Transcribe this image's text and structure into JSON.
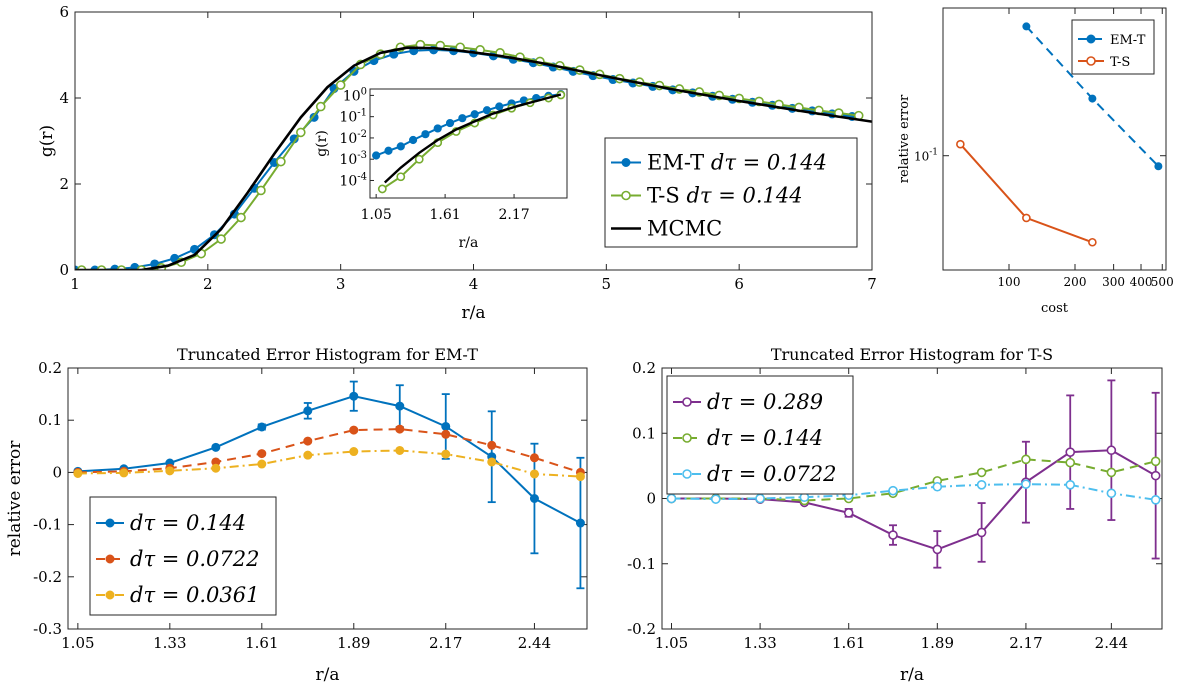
{
  "colors": {
    "blue": "#0072BD",
    "orange": "#D95319",
    "yellow": "#EDB120",
    "purple": "#7E2F8E",
    "green": "#77AC30",
    "cyan": "#4DBEEE",
    "black": "#000000"
  },
  "chart_data": [
    {
      "id": "gr",
      "type": "line",
      "title": "",
      "xlabel": "r/a",
      "ylabel": "g(r)",
      "xlim": [
        1,
        7
      ],
      "ylim": [
        0,
        6
      ],
      "xticks": [
        1,
        2,
        3,
        4,
        5,
        6,
        7
      ],
      "yticks": [
        0,
        2,
        4,
        6
      ],
      "legend_position": "lower-right",
      "series": [
        {
          "name": "EM-T dτ = 0.144",
          "legend_label": {
            "text": "EM-T ",
            "math": "dτ = 0.144"
          },
          "color": "blue",
          "marker": "filled-circle",
          "x": [
            1.0,
            1.15,
            1.3,
            1.45,
            1.6,
            1.75,
            1.9,
            2.05,
            2.2,
            2.35,
            2.5,
            2.65,
            2.8,
            2.95,
            3.1,
            3.25,
            3.4,
            3.55,
            3.7,
            3.85,
            4.0,
            4.15,
            4.3,
            4.45,
            4.6,
            4.75,
            4.9,
            5.05,
            5.2,
            5.35,
            5.5,
            5.65,
            5.8,
            5.95,
            6.1,
            6.25,
            6.4,
            6.55,
            6.7,
            6.85
          ],
          "y": [
            0.0,
            0.0,
            0.02,
            0.06,
            0.14,
            0.27,
            0.48,
            0.82,
            1.3,
            1.9,
            2.5,
            3.05,
            3.55,
            4.22,
            4.62,
            4.87,
            5.02,
            5.1,
            5.12,
            5.1,
            5.05,
            4.98,
            4.9,
            4.82,
            4.72,
            4.62,
            4.52,
            4.43,
            4.35,
            4.27,
            4.19,
            4.12,
            4.04,
            3.97,
            3.9,
            3.83,
            3.76,
            3.7,
            3.63,
            3.57
          ]
        },
        {
          "name": "T-S dτ = 0.144",
          "legend_label": {
            "text": "T-S ",
            "math": "dτ = 0.144"
          },
          "color": "green",
          "marker": "open-circle",
          "x": [
            1.05,
            1.2,
            1.35,
            1.5,
            1.65,
            1.8,
            1.95,
            2.1,
            2.25,
            2.4,
            2.55,
            2.7,
            2.85,
            3.0,
            3.15,
            3.3,
            3.45,
            3.6,
            3.75,
            3.9,
            4.05,
            4.2,
            4.35,
            4.5,
            4.65,
            4.8,
            4.95,
            5.1,
            5.25,
            5.4,
            5.55,
            5.7,
            5.85,
            6.0,
            6.15,
            6.3,
            6.45,
            6.6,
            6.75,
            6.9
          ],
          "y": [
            0.0,
            0.0,
            0.0,
            0.0,
            0.05,
            0.18,
            0.38,
            0.72,
            1.22,
            1.85,
            2.52,
            3.2,
            3.8,
            4.3,
            4.78,
            5.02,
            5.18,
            5.24,
            5.22,
            5.18,
            5.12,
            5.05,
            4.95,
            4.85,
            4.75,
            4.65,
            4.55,
            4.45,
            4.37,
            4.29,
            4.21,
            4.14,
            4.06,
            3.99,
            3.92,
            3.85,
            3.78,
            3.71,
            3.65,
            3.59
          ]
        },
        {
          "name": "MCMC",
          "legend_label": {
            "text": "MCMC",
            "math": ""
          },
          "color": "black",
          "marker": "none",
          "x": [
            1.0,
            1.5,
            1.7,
            1.9,
            2.1,
            2.3,
            2.5,
            2.7,
            2.9,
            3.1,
            3.3,
            3.5,
            3.7,
            3.9,
            4.2,
            4.5,
            5.0,
            5.5,
            6.0,
            6.5,
            7.0
          ],
          "y": [
            0.0,
            0.0,
            0.1,
            0.35,
            0.95,
            1.8,
            2.7,
            3.55,
            4.25,
            4.75,
            5.05,
            5.17,
            5.16,
            5.1,
            4.98,
            4.82,
            4.5,
            4.2,
            3.93,
            3.68,
            3.45
          ]
        }
      ],
      "inset": {
        "type": "line",
        "xlabel": "r/a",
        "ylabel": "g(r)",
        "yscale": "log",
        "xlim": [
          1.0,
          2.6
        ],
        "ylim": [
          1.5e-05,
          2
        ],
        "xticks": [
          1.05,
          1.61,
          2.17
        ],
        "xtick_labels": [
          "1.05",
          "1.61",
          "2.17"
        ],
        "yticks": [
          0.0001,
          0.001,
          0.01,
          0.1,
          1
        ],
        "ytick_labels": [
          {
            "base": "10",
            "exp": "-4"
          },
          {
            "base": "10",
            "exp": "-3"
          },
          {
            "base": "10",
            "exp": "-2"
          },
          {
            "base": "10",
            "exp": "-1"
          },
          {
            "base": "10",
            "exp": "0"
          }
        ],
        "series": [
          {
            "color": "blue",
            "marker": "filled-circle",
            "x": [
              1.05,
              1.15,
              1.25,
              1.35,
              1.45,
              1.55,
              1.65,
              1.75,
              1.85,
              1.95,
              2.05,
              2.15,
              2.25,
              2.35,
              2.45,
              2.55
            ],
            "y": [
              0.0015,
              0.0025,
              0.004,
              0.008,
              0.015,
              0.028,
              0.05,
              0.085,
              0.13,
              0.2,
              0.3,
              0.42,
              0.58,
              0.75,
              0.95,
              1.15
            ]
          },
          {
            "color": "green",
            "marker": "open-circle",
            "x": [
              1.1,
              1.25,
              1.4,
              1.55,
              1.7,
              1.85,
              2.0,
              2.15,
              2.3,
              2.45,
              2.55
            ],
            "y": [
              4e-05,
              0.00015,
              0.001,
              0.006,
              0.02,
              0.05,
              0.12,
              0.25,
              0.45,
              0.75,
              1.05
            ]
          },
          {
            "color": "black",
            "marker": "none",
            "x": [
              1.12,
              1.25,
              1.4,
              1.55,
              1.7,
              1.85,
              2.0,
              2.2,
              2.4,
              2.55
            ],
            "y": [
              8e-05,
              0.0004,
              0.002,
              0.008,
              0.025,
              0.06,
              0.14,
              0.32,
              0.65,
              1.1
            ]
          }
        ]
      }
    },
    {
      "id": "cost",
      "type": "line",
      "title": "",
      "xlabel": "cost",
      "ylabel": "relative error",
      "xscale": "log",
      "yscale": "log",
      "xlim": [
        50,
        520
      ],
      "ylim": [
        0.025,
        0.6
      ],
      "xticks": [
        100,
        200,
        300,
        400,
        500
      ],
      "xtick_labels": [
        "100",
        "200",
        "300",
        "400",
        "500"
      ],
      "yticks": [
        0.1
      ],
      "ytick_labels": [
        {
          "base": "10",
          "exp": "-1"
        }
      ],
      "legend_position": "top-right",
      "series": [
        {
          "name": "EM-T",
          "color": "blue",
          "marker": "filled-circle",
          "linestyle": "dashed",
          "x": [
            120,
            240,
            480
          ],
          "y": [
            0.48,
            0.2,
            0.088
          ]
        },
        {
          "name": "T-S",
          "color": "orange",
          "marker": "open-circle",
          "linestyle": "solid",
          "x": [
            60,
            120,
            240
          ],
          "y": [
            0.115,
            0.047,
            0.035
          ]
        }
      ]
    },
    {
      "id": "emt",
      "type": "line",
      "title": "Truncated Error Histogram for EM-T",
      "xlabel": "r/a",
      "ylabel": "relative error",
      "xlim": [
        1.02,
        2.6
      ],
      "ylim": [
        -0.3,
        0.2
      ],
      "xticks": [
        1.05,
        1.33,
        1.61,
        1.89,
        2.17,
        2.44
      ],
      "xtick_labels": [
        "1.05",
        "1.33",
        "1.61",
        "1.89",
        "2.17",
        "2.44"
      ],
      "yticks": [
        -0.3,
        -0.2,
        -0.1,
        0,
        0.1,
        0.2
      ],
      "ytick_labels": [
        "-0.3",
        "-0.2",
        "-0.1",
        "0",
        "0.1",
        "0.2"
      ],
      "legend_position": "bottom-left",
      "series": [
        {
          "name": "dτ = 0.144",
          "legend_label": {
            "text": "",
            "math": "dτ = 0.144"
          },
          "color": "blue",
          "marker": "filled-circle",
          "linestyle": "solid",
          "x": [
            1.05,
            1.19,
            1.33,
            1.47,
            1.61,
            1.75,
            1.89,
            2.03,
            2.17,
            2.31,
            2.44,
            2.58
          ],
          "y": [
            0.002,
            0.007,
            0.018,
            0.048,
            0.087,
            0.118,
            0.146,
            0.127,
            0.088,
            0.03,
            -0.05,
            -0.097
          ],
          "err": [
            0,
            0,
            0,
            0,
            0.005,
            0.015,
            0.028,
            0.04,
            0.062,
            0.087,
            0.105,
            0.125
          ]
        },
        {
          "name": "dτ = 0.0722",
          "legend_label": {
            "text": "",
            "math": "dτ = 0.0722"
          },
          "color": "orange",
          "marker": "filled-circle",
          "linestyle": "dashed",
          "x": [
            1.05,
            1.19,
            1.33,
            1.47,
            1.61,
            1.75,
            1.89,
            2.03,
            2.17,
            2.31,
            2.44,
            2.58
          ],
          "y": [
            0.0,
            0.002,
            0.008,
            0.02,
            0.036,
            0.06,
            0.081,
            0.083,
            0.073,
            0.052,
            0.028,
            0.0
          ]
        },
        {
          "name": "dτ = 0.0361",
          "legend_label": {
            "text": "",
            "math": "dτ = 0.0361"
          },
          "color": "yellow",
          "marker": "filled-circle",
          "linestyle": "dashdot",
          "x": [
            1.05,
            1.19,
            1.33,
            1.47,
            1.61,
            1.75,
            1.89,
            2.03,
            2.17,
            2.31,
            2.44,
            2.58
          ],
          "y": [
            -0.002,
            -0.001,
            0.003,
            0.008,
            0.016,
            0.033,
            0.04,
            0.042,
            0.035,
            0.02,
            -0.003,
            -0.008
          ]
        }
      ]
    },
    {
      "id": "ts",
      "type": "line",
      "title": "Truncated Error Histogram for T-S",
      "xlabel": "r/a",
      "ylabel": "",
      "xlim": [
        1.02,
        2.6
      ],
      "ylim": [
        -0.2,
        0.2
      ],
      "xticks": [
        1.05,
        1.33,
        1.61,
        1.89,
        2.17,
        2.44
      ],
      "xtick_labels": [
        "1.05",
        "1.33",
        "1.61",
        "1.89",
        "2.17",
        "2.44"
      ],
      "yticks": [
        -0.2,
        -0.1,
        0,
        0.1,
        0.2
      ],
      "ytick_labels": [
        "-0.2",
        "-0.1",
        "0",
        "0.1",
        "0.2"
      ],
      "legend_position": "top-left",
      "series": [
        {
          "name": "dτ = 0.289",
          "legend_label": {
            "text": "",
            "math": "dτ = 0.289"
          },
          "color": "purple",
          "marker": "open-circle",
          "linestyle": "solid",
          "x": [
            1.05,
            1.19,
            1.33,
            1.47,
            1.61,
            1.75,
            1.89,
            2.03,
            2.17,
            2.31,
            2.44,
            2.58
          ],
          "y": [
            0.0,
            0.0,
            -0.001,
            -0.006,
            -0.022,
            -0.056,
            -0.078,
            -0.052,
            0.025,
            0.071,
            0.074,
            0.035
          ],
          "err": [
            0,
            0,
            0,
            0,
            0.006,
            0.015,
            0.028,
            0.045,
            0.062,
            0.087,
            0.107,
            0.127
          ]
        },
        {
          "name": "dτ = 0.144",
          "legend_label": {
            "text": "",
            "math": "dτ = 0.144"
          },
          "color": "green",
          "marker": "open-circle",
          "linestyle": "dashed",
          "x": [
            1.05,
            1.19,
            1.33,
            1.47,
            1.61,
            1.75,
            1.89,
            2.03,
            2.17,
            2.31,
            2.44,
            2.58
          ],
          "y": [
            0.0,
            0.0,
            0.0,
            -0.003,
            0.0,
            0.008,
            0.027,
            0.04,
            0.06,
            0.055,
            0.04,
            0.057
          ]
        },
        {
          "name": "dτ = 0.0722",
          "legend_label": {
            "text": "",
            "math": "dτ = 0.0722"
          },
          "color": "cyan",
          "marker": "open-circle",
          "linestyle": "dashdot",
          "x": [
            1.05,
            1.19,
            1.33,
            1.47,
            1.61,
            1.75,
            1.89,
            2.03,
            2.17,
            2.31,
            2.44,
            2.58
          ],
          "y": [
            0.0,
            -0.001,
            0.0,
            0.002,
            0.005,
            0.012,
            0.018,
            0.021,
            0.022,
            0.021,
            0.008,
            -0.002
          ]
        }
      ]
    }
  ]
}
